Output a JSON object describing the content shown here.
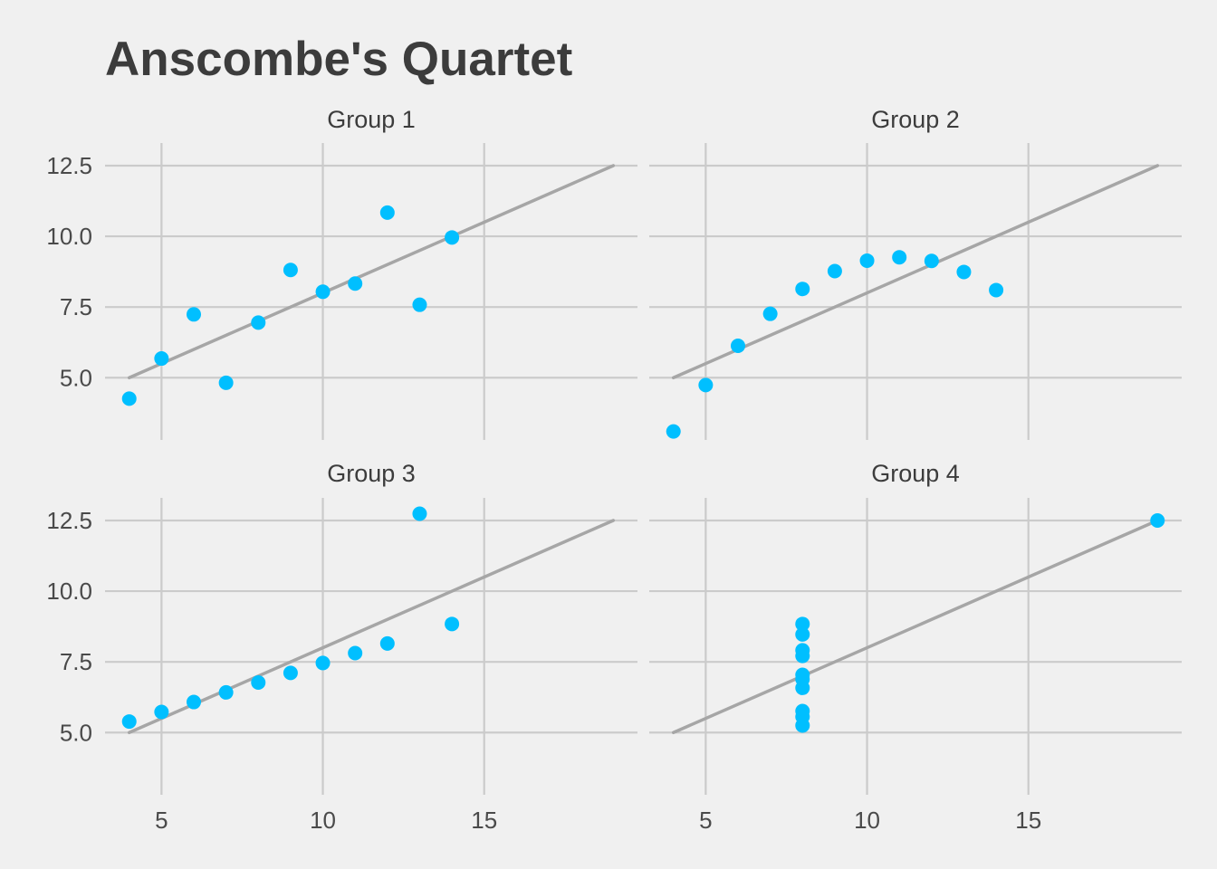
{
  "title": "Anscombe's Quartet",
  "colors": {
    "background": "#f0f0f0",
    "grid": "#cbcbcb",
    "fit_line": "#a6a6a6",
    "points": "#00bfff",
    "text": "#3c3c3c"
  },
  "chart_data": {
    "type": "scatter",
    "title": "Anscombe's Quartet",
    "xlabel": "",
    "ylabel": "",
    "xlim": [
      3.25,
      19.75
    ],
    "ylim": [
      2.8,
      13.3
    ],
    "x_ticks": [
      5,
      10,
      15
    ],
    "x_tick_labels": [
      "5",
      "10",
      "15"
    ],
    "y_ticks": [
      5,
      7.5,
      10,
      12.5
    ],
    "y_tick_labels": [
      "5.0",
      "7.5",
      "10.0",
      "12.5"
    ],
    "grid": true,
    "legend": "none",
    "fit_line": {
      "intercept": 3,
      "slope": 0.5,
      "x_range": [
        4,
        19
      ]
    },
    "panels": [
      {
        "name": "Group 1",
        "points": [
          [
            4,
            4.26
          ],
          [
            5,
            5.68
          ],
          [
            6,
            7.24
          ],
          [
            7,
            4.82
          ],
          [
            8,
            6.95
          ],
          [
            9,
            8.81
          ],
          [
            10,
            8.04
          ],
          [
            11,
            8.33
          ],
          [
            12,
            10.84
          ],
          [
            13,
            7.58
          ],
          [
            14,
            9.96
          ]
        ]
      },
      {
        "name": "Group 2",
        "points": [
          [
            4,
            3.1
          ],
          [
            5,
            4.74
          ],
          [
            6,
            6.13
          ],
          [
            7,
            7.26
          ],
          [
            8,
            8.14
          ],
          [
            9,
            8.77
          ],
          [
            10,
            9.14
          ],
          [
            11,
            9.26
          ],
          [
            12,
            9.13
          ],
          [
            13,
            8.74
          ],
          [
            14,
            8.1
          ]
        ]
      },
      {
        "name": "Group 3",
        "points": [
          [
            4,
            5.39
          ],
          [
            5,
            5.73
          ],
          [
            6,
            6.08
          ],
          [
            7,
            6.42
          ],
          [
            8,
            6.77
          ],
          [
            9,
            7.11
          ],
          [
            10,
            7.46
          ],
          [
            11,
            7.81
          ],
          [
            12,
            8.15
          ],
          [
            13,
            12.74
          ],
          [
            14,
            8.84
          ]
        ]
      },
      {
        "name": "Group 4",
        "points": [
          [
            8,
            6.58
          ],
          [
            8,
            5.76
          ],
          [
            8,
            7.71
          ],
          [
            8,
            8.84
          ],
          [
            8,
            8.47
          ],
          [
            8,
            7.04
          ],
          [
            8,
            5.25
          ],
          [
            19,
            12.5
          ],
          [
            8,
            5.56
          ],
          [
            8,
            7.91
          ],
          [
            8,
            6.89
          ]
        ]
      }
    ]
  }
}
